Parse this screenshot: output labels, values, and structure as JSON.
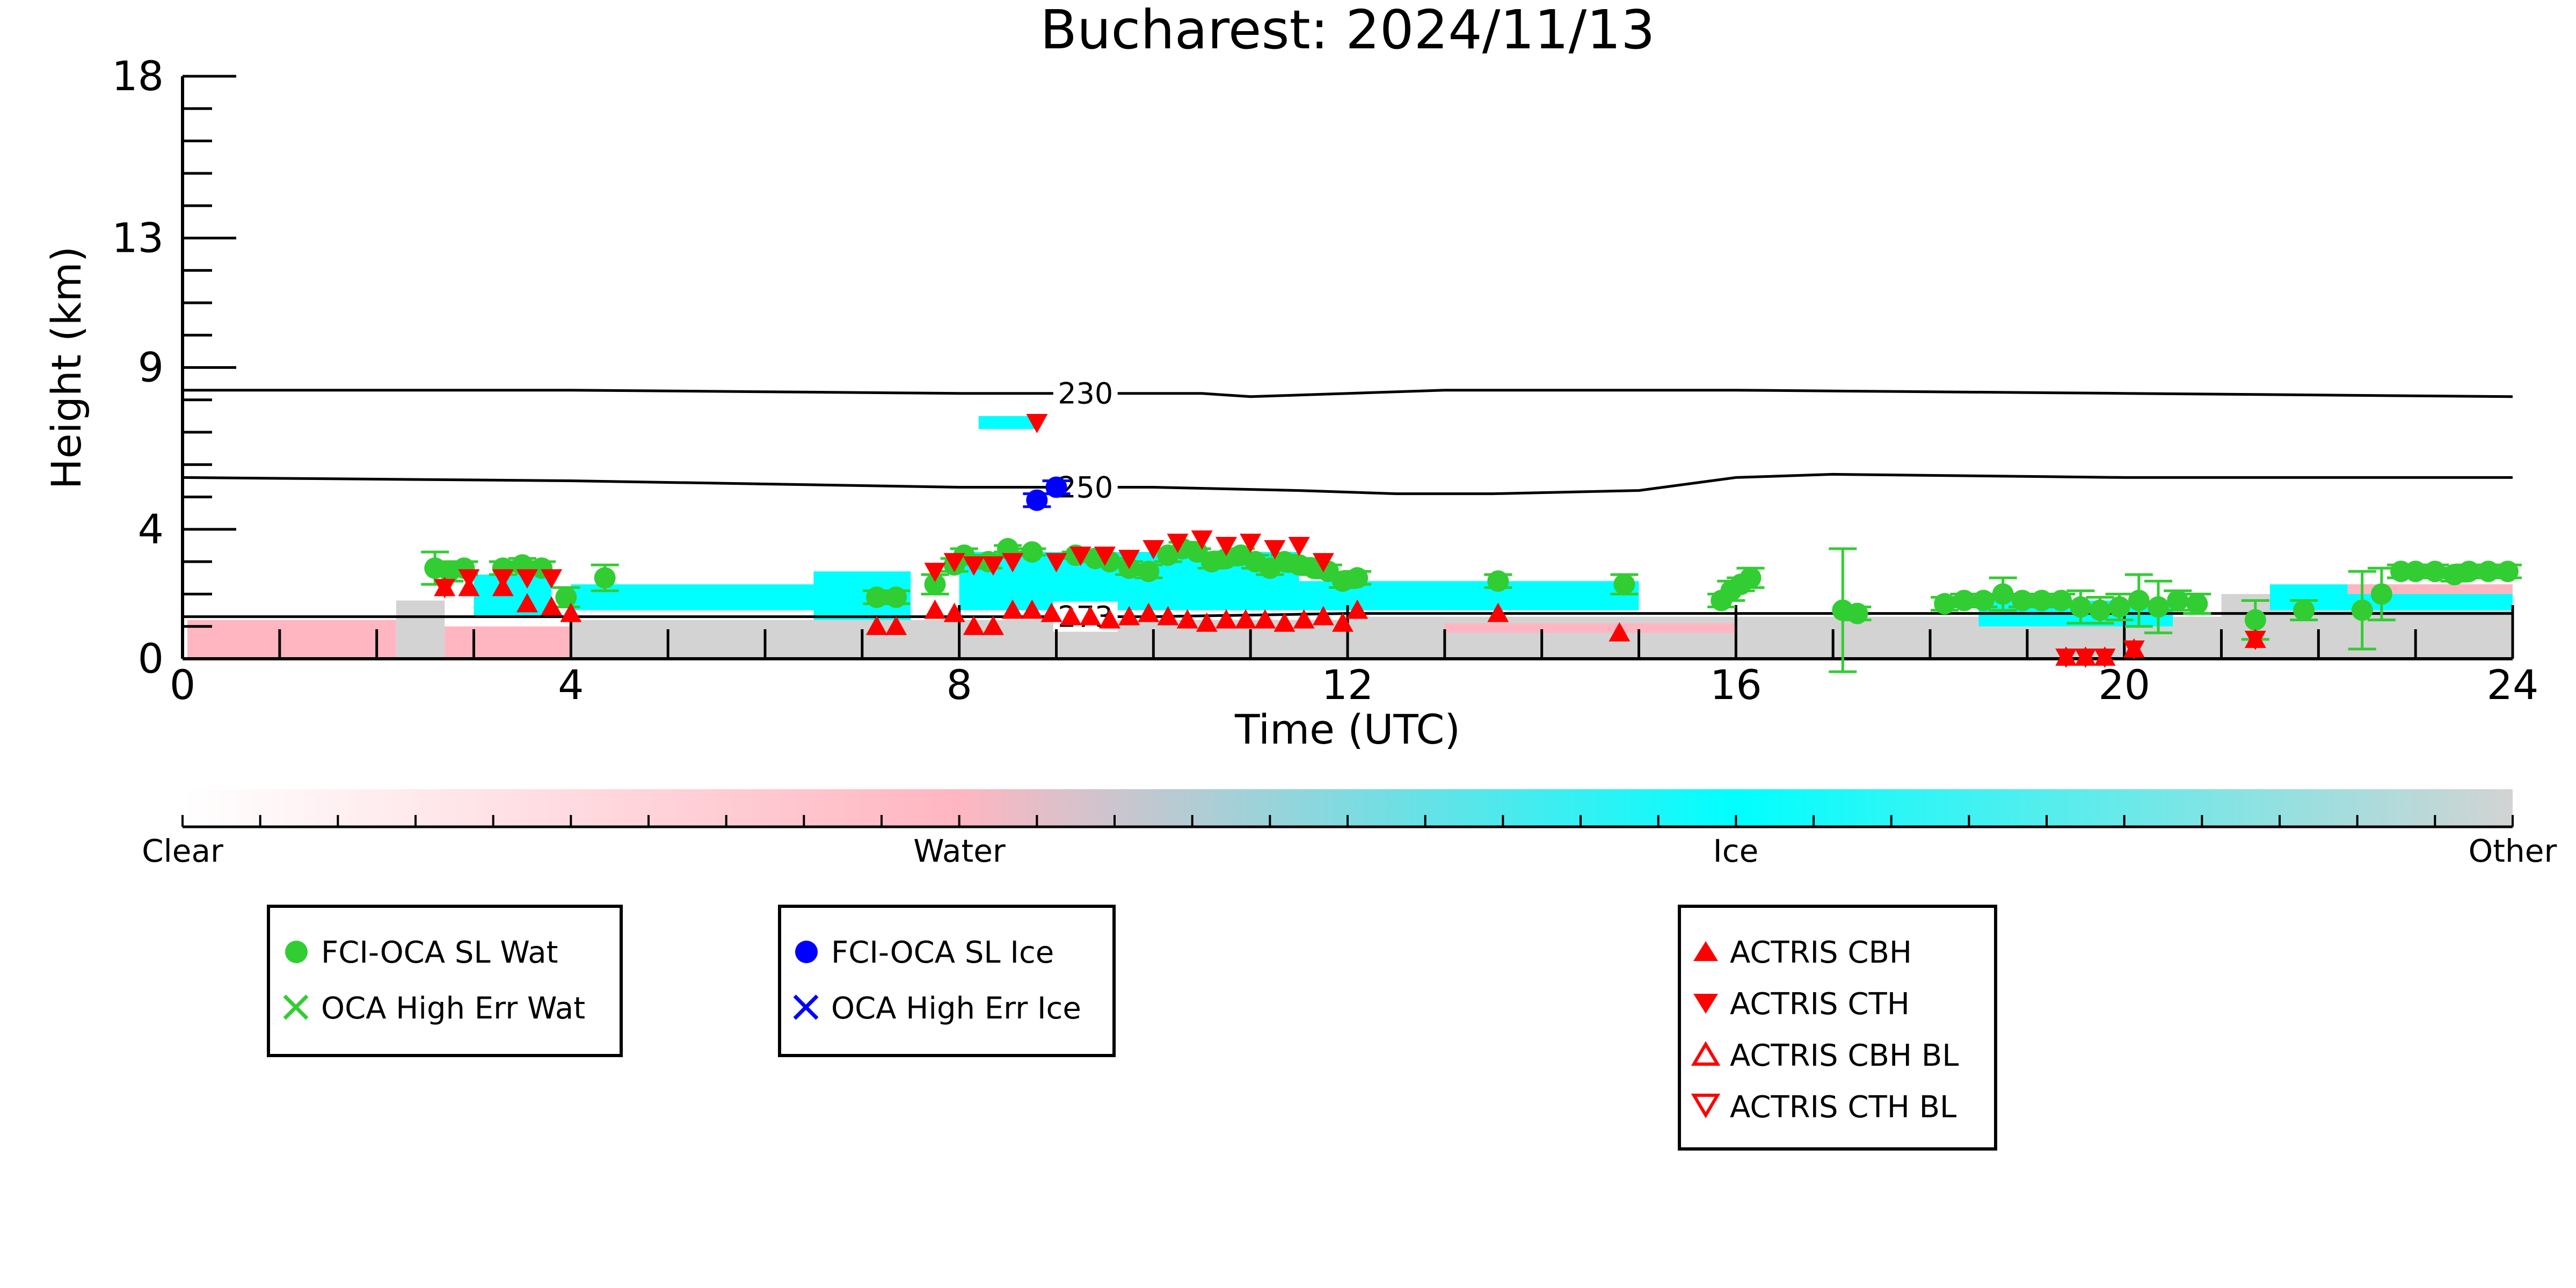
{
  "chart_data": {
    "type": "scatter",
    "title": "Bucharest: 2024/11/13",
    "xlabel": "Time (UTC)",
    "ylabel": "Height (km)",
    "xlim": [
      0,
      24
    ],
    "ylim": [
      0,
      18
    ],
    "xticks": [
      0,
      4,
      8,
      12,
      16,
      20,
      24
    ],
    "yticks": [
      0,
      4,
      9,
      13,
      18
    ],
    "grid": false,
    "colors": {
      "clear": "#ffffff",
      "water": "#ffb6c1",
      "ice": "#00ffff",
      "other": "#d3d3d3",
      "fci_wat": "#32cd32",
      "fci_ice": "#0000ff",
      "actris": "#ff0000"
    },
    "colorbar": {
      "labels": [
        "Clear",
        "Water",
        "Ice",
        "Other"
      ]
    },
    "isotherms": [
      {
        "label": "230",
        "label_x": 9.3,
        "points": [
          [
            0,
            8.3
          ],
          [
            4,
            8.3
          ],
          [
            8,
            8.2
          ],
          [
            9,
            8.2
          ],
          [
            10.5,
            8.2
          ],
          [
            11,
            8.1
          ],
          [
            13,
            8.3
          ],
          [
            16,
            8.3
          ],
          [
            20,
            8.2
          ],
          [
            24,
            8.1
          ]
        ]
      },
      {
        "label": "250",
        "label_x": 9.3,
        "points": [
          [
            0,
            5.6
          ],
          [
            4,
            5.5
          ],
          [
            8,
            5.3
          ],
          [
            9,
            5.3
          ],
          [
            10,
            5.3
          ],
          [
            11.5,
            5.2
          ],
          [
            12.5,
            5.1
          ],
          [
            13.5,
            5.1
          ],
          [
            15,
            5.2
          ],
          [
            16,
            5.6
          ],
          [
            17,
            5.7
          ],
          [
            20,
            5.6
          ],
          [
            24,
            5.6
          ]
        ]
      },
      {
        "label": "273",
        "label_x": 9.3,
        "points": [
          [
            0,
            1.3
          ],
          [
            4,
            1.3
          ],
          [
            8,
            1.3
          ],
          [
            10,
            1.3
          ],
          [
            12,
            1.4
          ],
          [
            14,
            1.4
          ],
          [
            16,
            1.4
          ],
          [
            20,
            1.4
          ],
          [
            24,
            1.4
          ]
        ]
      }
    ],
    "cloud_regions": [
      {
        "cls": "water",
        "x0": 0.05,
        "x1": 2.2,
        "y0": 0.05,
        "y1": 1.2
      },
      {
        "cls": "other",
        "x0": 2.2,
        "x1": 2.7,
        "y0": 0.0,
        "y1": 1.8
      },
      {
        "cls": "water",
        "x0": 2.7,
        "x1": 4.0,
        "y0": 0.0,
        "y1": 1.0
      },
      {
        "cls": "ice",
        "x0": 3.0,
        "x1": 3.8,
        "y0": 1.3,
        "y1": 2.6
      },
      {
        "cls": "ice",
        "x0": 4.0,
        "x1": 6.5,
        "y0": 1.5,
        "y1": 2.3
      },
      {
        "cls": "other",
        "x0": 4.0,
        "x1": 12.0,
        "y0": 0.0,
        "y1": 1.2
      },
      {
        "cls": "ice",
        "x0": 6.5,
        "x1": 7.5,
        "y0": 1.2,
        "y1": 2.7
      },
      {
        "cls": "ice",
        "x0": 8.0,
        "x1": 11.5,
        "y0": 1.5,
        "y1": 3.3
      },
      {
        "cls": "ice",
        "x0": 11.5,
        "x1": 15.0,
        "y0": 1.5,
        "y1": 2.4
      },
      {
        "cls": "ice",
        "x0": 8.2,
        "x1": 8.8,
        "y0": 7.1,
        "y1": 7.5
      },
      {
        "cls": "other",
        "x0": 12.0,
        "x1": 21.0,
        "y0": 0.0,
        "y1": 1.3
      },
      {
        "cls": "water",
        "x0": 13.0,
        "x1": 16.0,
        "y0": 0.8,
        "y1": 1.1
      },
      {
        "cls": "ice",
        "x0": 18.5,
        "x1": 20.5,
        "y0": 1.0,
        "y1": 1.8
      },
      {
        "cls": "other",
        "x0": 21.0,
        "x1": 24.0,
        "y0": 0.0,
        "y1": 2.0
      },
      {
        "cls": "ice",
        "x0": 21.5,
        "x1": 24.0,
        "y0": 1.5,
        "y1": 2.3
      },
      {
        "cls": "water",
        "x0": 22.3,
        "x1": 24.0,
        "y0": 2.0,
        "y1": 2.3
      }
    ],
    "series": [
      {
        "name": "FCI-OCA SL Wat",
        "marker": "circle",
        "color": "#32cd32",
        "x": [
          2.6,
          2.75,
          2.9,
          3.3,
          3.5,
          3.7,
          3.95,
          4.35,
          7.15,
          7.35,
          7.75,
          7.95,
          8.05,
          8.3,
          8.5,
          8.75,
          9.2,
          9.4,
          9.55,
          9.75,
          9.95,
          10.15,
          10.3,
          10.45,
          10.6,
          10.75,
          10.9,
          11.05,
          11.2,
          11.35,
          11.5,
          11.65,
          11.8,
          11.95,
          12.1,
          13.55,
          14.85,
          15.85,
          15.95,
          16.05,
          16.15,
          17.1,
          17.25,
          18.15,
          18.35,
          18.55,
          18.75,
          18.95,
          19.15,
          19.35,
          19.55,
          19.75,
          19.95,
          20.15,
          20.35,
          20.55,
          20.75,
          21.35,
          21.85,
          22.45,
          22.65,
          22.85,
          23.0,
          23.2,
          23.4,
          23.55,
          23.75,
          23.95
        ],
        "y": [
          2.8,
          2.7,
          2.8,
          2.8,
          2.9,
          2.8,
          1.9,
          2.5,
          1.9,
          1.9,
          2.3,
          2.9,
          3.2,
          3.0,
          3.4,
          3.3,
          3.2,
          3.1,
          3.0,
          2.8,
          2.7,
          3.2,
          3.4,
          3.3,
          3.0,
          3.1,
          3.2,
          3.0,
          2.8,
          3.0,
          2.9,
          2.8,
          2.7,
          2.4,
          2.5,
          2.4,
          2.3,
          1.8,
          2.1,
          2.3,
          2.5,
          1.5,
          1.4,
          1.7,
          1.8,
          1.8,
          2.0,
          1.8,
          1.8,
          1.8,
          1.6,
          1.5,
          1.6,
          1.8,
          1.6,
          1.8,
          1.7,
          1.2,
          1.5,
          1.5,
          2.0,
          2.7,
          2.7,
          2.7,
          2.6,
          2.7,
          2.7,
          2.7
        ],
        "yerr": [
          0.5,
          0.3,
          0.2,
          0.2,
          0.2,
          0.2,
          0.3,
          0.4,
          0.2,
          0.2,
          0.3,
          0.2,
          0.2,
          0.2,
          0.1,
          0.1,
          0.1,
          0.1,
          0.1,
          0.2,
          0.2,
          0.2,
          0.2,
          0.1,
          0.2,
          0.2,
          0.2,
          0.2,
          0.2,
          0.2,
          0.2,
          0.2,
          0.2,
          0.2,
          0.2,
          0.2,
          0.3,
          0.2,
          0.3,
          0.2,
          0.3,
          1.9,
          0.2,
          0.2,
          0.2,
          0.2,
          0.5,
          0.2,
          0.2,
          0.2,
          0.5,
          0.4,
          0.4,
          0.8,
          0.8,
          0.3,
          0.3,
          0.6,
          0.3,
          1.2,
          0.8,
          0.2,
          0.2,
          0.2,
          0.2,
          0.2,
          0.2,
          0.2
        ]
      },
      {
        "name": "OCA High Err Wat",
        "marker": "x",
        "color": "#32cd32",
        "x": [],
        "y": []
      },
      {
        "name": "FCI-OCA SL Ice",
        "marker": "circle",
        "color": "#0000ff",
        "x": [
          8.8,
          9.0
        ],
        "y": [
          4.9,
          5.3
        ],
        "yerr": [
          0.2,
          0.2
        ]
      },
      {
        "name": "OCA High Err Ice",
        "marker": "x",
        "color": "#0000ff",
        "x": [],
        "y": []
      },
      {
        "name": "ACTRIS CBH",
        "marker": "triangle-up",
        "color": "#ff0000",
        "x": [
          2.7,
          2.95,
          3.3,
          3.55,
          3.8,
          4.0,
          7.15,
          7.35,
          7.75,
          7.95,
          8.15,
          8.35,
          8.55,
          8.75,
          8.95,
          9.15,
          9.35,
          9.55,
          9.75,
          9.95,
          10.15,
          10.35,
          10.55,
          10.75,
          10.95,
          11.15,
          11.35,
          11.55,
          11.75,
          11.95,
          12.1,
          13.55,
          14.8,
          19.4,
          19.6,
          19.8,
          20.1,
          21.35
        ],
        "y": [
          2.2,
          2.2,
          2.2,
          1.7,
          1.6,
          1.4,
          1.0,
          1.0,
          1.5,
          1.4,
          1.0,
          1.0,
          1.5,
          1.5,
          1.4,
          1.3,
          1.3,
          1.2,
          1.3,
          1.4,
          1.3,
          1.2,
          1.1,
          1.2,
          1.2,
          1.2,
          1.1,
          1.2,
          1.3,
          1.1,
          1.5,
          1.4,
          0.8,
          0.05,
          0.05,
          0.05,
          0.3,
          0.6
        ]
      },
      {
        "name": "ACTRIS CTH",
        "marker": "triangle-down",
        "color": "#ff0000",
        "x": [
          2.7,
          2.95,
          3.3,
          3.55,
          3.8,
          7.75,
          7.95,
          8.15,
          8.35,
          8.55,
          8.8,
          9.0,
          9.25,
          9.5,
          9.75,
          10.0,
          10.25,
          10.5,
          10.75,
          11.0,
          11.25,
          11.5,
          11.75,
          19.4,
          19.6,
          19.8,
          20.1,
          21.35
        ],
        "y": [
          2.2,
          2.5,
          2.5,
          2.5,
          2.5,
          2.7,
          3.0,
          2.9,
          2.9,
          3.0,
          7.3,
          3.0,
          3.2,
          3.2,
          3.1,
          3.4,
          3.6,
          3.7,
          3.5,
          3.6,
          3.4,
          3.5,
          3.0,
          0.05,
          0.05,
          0.05,
          0.3,
          0.6
        ]
      },
      {
        "name": "ACTRIS CBH BL",
        "marker": "triangle-up-open",
        "color": "#ff0000",
        "x": [],
        "y": []
      },
      {
        "name": "ACTRIS CTH BL",
        "marker": "triangle-down-open",
        "color": "#ff0000",
        "x": [],
        "y": []
      }
    ],
    "legends": [
      {
        "entries": [
          "FCI-OCA SL Wat",
          "OCA High Err Wat"
        ]
      },
      {
        "entries": [
          "FCI-OCA SL Ice",
          "OCA High Err Ice"
        ]
      },
      {
        "entries": [
          "ACTRIS CBH",
          "ACTRIS CTH",
          "ACTRIS CBH BL",
          "ACTRIS CTH BL"
        ]
      }
    ]
  }
}
